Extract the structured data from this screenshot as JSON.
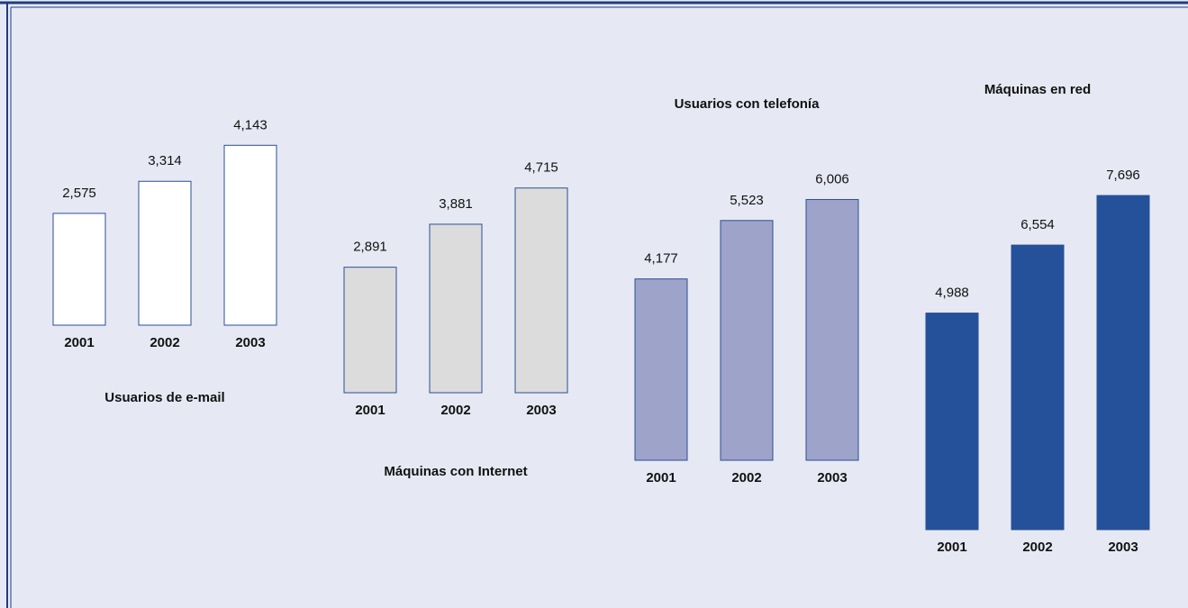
{
  "chart_data": [
    {
      "type": "bar",
      "title": "Usuarios de e-mail",
      "categories": [
        "2001",
        "2002",
        "2003"
      ],
      "values": [
        2575,
        3314,
        4143
      ],
      "value_labels": [
        "2,575",
        "3,314",
        "4,143"
      ],
      "color": "#ffffff"
    },
    {
      "type": "bar",
      "title": "Máquinas con Internet",
      "categories": [
        "2001",
        "2002",
        "2003"
      ],
      "values": [
        2891,
        3881,
        4715
      ],
      "value_labels": [
        "2,891",
        "3,881",
        "4,715"
      ],
      "color": "#dcdcdc"
    },
    {
      "type": "bar",
      "title": "Usuarios con telefonía",
      "categories": [
        "2001",
        "2002",
        "2003"
      ],
      "values": [
        4177,
        5523,
        6006
      ],
      "value_labels": [
        "4,177",
        "5,523",
        "6,006"
      ],
      "color": "#9ea3c9"
    },
    {
      "type": "bar",
      "title": "Máquinas en red",
      "categories": [
        "2001",
        "2002",
        "2003"
      ],
      "values": [
        4988,
        6554,
        7696
      ],
      "value_labels": [
        "4,988",
        "6,554",
        "7,696"
      ],
      "color": "#24519a"
    }
  ]
}
